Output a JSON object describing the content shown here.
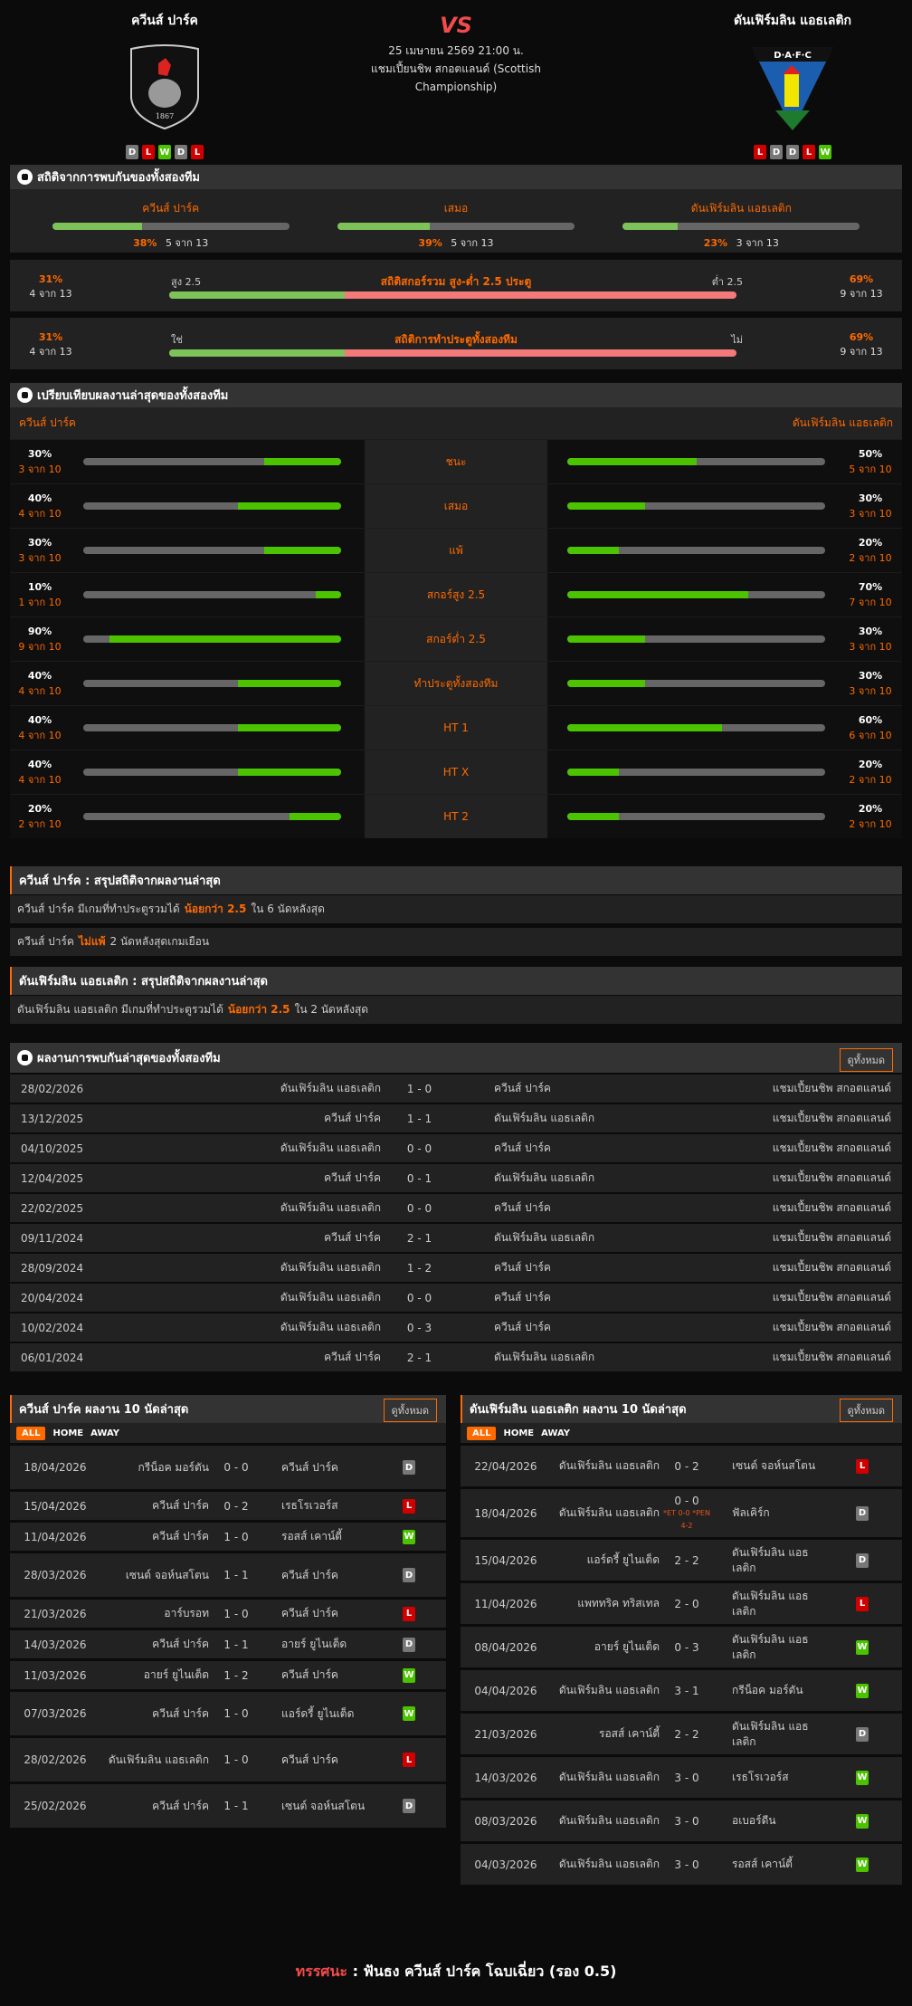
{
  "colors": {
    "accent": "#ff6a00",
    "win": "#4cc300",
    "loss": "#d00000",
    "draw": "#777777",
    "bar_green": "#7dc35a",
    "bar_red": "#f47a7a"
  },
  "match": {
    "home": {
      "name": "ควีนส์ ปาร์ค",
      "logo_text": "QUEEN'S PARK F.C. 1867",
      "form": [
        "D",
        "L",
        "W",
        "D",
        "L"
      ]
    },
    "away": {
      "name": "ดันเฟิร์มลิน แอธเลติก",
      "logo_text": "D·A·F·C",
      "form": [
        "L",
        "D",
        "D",
        "L",
        "W"
      ]
    },
    "vs": "VS",
    "datetime": "25 เมษายน 2569 21:00 น.",
    "league": "แชมเปี้ยนชิพ สกอตแลนด์ (Scottish Championship)"
  },
  "h2h_stats": {
    "title": "สถิติจากการพบกันของทั้งสองทีม",
    "items": [
      {
        "label": "ควีนส์ ปาร์ค",
        "pct": "38%",
        "count": "5 จาก 13",
        "value": 38
      },
      {
        "label": "เสมอ",
        "pct": "39%",
        "count": "5 จาก 13",
        "value": 39
      },
      {
        "label": "ดันเฟิร์มลิน แอธเลติก",
        "pct": "23%",
        "count": "3 จาก 13",
        "value": 23
      }
    ],
    "over_under": {
      "title": "สถิติสกอร์รวม สูง-ต่ำ 2.5 ประตู",
      "left_label": "สูง 2.5",
      "right_label": "ต่ำ 2.5",
      "left_pct": "31%",
      "left_count": "4 จาก 13",
      "right_pct": "69%",
      "right_count": "9 จาก 13",
      "value": 31
    },
    "btts": {
      "title": "สถิติการทำประตูทั้งสองทีม",
      "left_label": "ใช่",
      "right_label": "ไม่",
      "left_pct": "31%",
      "left_count": "4 จาก 13",
      "right_pct": "69%",
      "right_count": "9 จาก 13",
      "value": 31
    }
  },
  "compare": {
    "title": "เปรียบเทียบผลงานล่าสุดของทั้งสองทีม",
    "home_name": "ควีนส์ ปาร์ค",
    "away_name": "ดันเฟิร์มลิน แอธเลติก",
    "rows": [
      {
        "label": "ชนะ",
        "h_pct": "30%",
        "h_count": "3 จาก 10",
        "h": 30,
        "a_pct": "50%",
        "a_count": "5 จาก 10",
        "a": 50
      },
      {
        "label": "เสมอ",
        "h_pct": "40%",
        "h_count": "4 จาก 10",
        "h": 40,
        "a_pct": "30%",
        "a_count": "3 จาก 10",
        "a": 30
      },
      {
        "label": "แพ้",
        "h_pct": "30%",
        "h_count": "3 จาก 10",
        "h": 30,
        "a_pct": "20%",
        "a_count": "2 จาก 10",
        "a": 20
      },
      {
        "label": "สกอร์สูง 2.5",
        "h_pct": "10%",
        "h_count": "1 จาก 10",
        "h": 10,
        "a_pct": "70%",
        "a_count": "7 จาก 10",
        "a": 70
      },
      {
        "label": "สกอร์ต่ำ 2.5",
        "h_pct": "90%",
        "h_count": "9 จาก 10",
        "h": 90,
        "a_pct": "30%",
        "a_count": "3 จาก 10",
        "a": 30
      },
      {
        "label": "ทำประตูทั้งสองทีม",
        "h_pct": "40%",
        "h_count": "4 จาก 10",
        "h": 40,
        "a_pct": "30%",
        "a_count": "3 จาก 10",
        "a": 30
      },
      {
        "label": "HT 1",
        "h_pct": "40%",
        "h_count": "4 จาก 10",
        "h": 40,
        "a_pct": "60%",
        "a_count": "6 จาก 10",
        "a": 60
      },
      {
        "label": "HT X",
        "h_pct": "40%",
        "h_count": "4 จาก 10",
        "h": 40,
        "a_pct": "20%",
        "a_count": "2 จาก 10",
        "a": 20
      },
      {
        "label": "HT 2",
        "h_pct": "20%",
        "h_count": "2 จาก 10",
        "h": 20,
        "a_pct": "20%",
        "a_count": "2 จาก 10",
        "a": 20
      }
    ]
  },
  "summary_home": {
    "title": "ควีนส์ ปาร์ค : สรุปสถิติจากผลงานล่าสุด",
    "rows": [
      {
        "a": "ควีนส์ ปาร์ค  มีเกมที่ทำประตูรวมได้",
        "hl": "น้อยกว่า  2.5",
        "b": "ใน 6 นัดหลังสุด"
      },
      {
        "a": "ควีนส์ ปาร์ค",
        "hl": "ไม่แพ้",
        "b": "2  นัดหลังสุดเกมเยือน"
      }
    ]
  },
  "summary_away": {
    "title": "ดันเฟิร์มลิน แอธเลติก : สรุปสถิติจากผลงานล่าสุด",
    "rows": [
      {
        "a": "ดันเฟิร์มลิน แอธเลติก  มีเกมที่ทำประตูรวมได้",
        "hl": "น้อยกว่า  2.5",
        "b": "ใน 2 นัดหลังสุด"
      }
    ]
  },
  "h2h": {
    "title": "ผลงานการพบกันล่าสุดของทั้งสองทีม",
    "view_all": "ดูทั้งหมด",
    "rows": [
      {
        "date": "28/02/2026",
        "home": "ดันเฟิร์มลิน แอธเลติก",
        "score": "1 - 0",
        "away": "ควีนส์ ปาร์ค",
        "league": "แชมเปี้ยนชิพ สกอตแลนด์"
      },
      {
        "date": "13/12/2025",
        "home": "ควีนส์ ปาร์ค",
        "score": "1 - 1",
        "away": "ดันเฟิร์มลิน แอธเลติก",
        "league": "แชมเปี้ยนชิพ สกอตแลนด์"
      },
      {
        "date": "04/10/2025",
        "home": "ดันเฟิร์มลิน แอธเลติก",
        "score": "0 - 0",
        "away": "ควีนส์ ปาร์ค",
        "league": "แชมเปี้ยนชิพ สกอตแลนด์"
      },
      {
        "date": "12/04/2025",
        "home": "ควีนส์ ปาร์ค",
        "score": "0 - 1",
        "away": "ดันเฟิร์มลิน แอธเลติก",
        "league": "แชมเปี้ยนชิพ สกอตแลนด์"
      },
      {
        "date": "22/02/2025",
        "home": "ดันเฟิร์มลิน แอธเลติก",
        "score": "0 - 0",
        "away": "ควีนส์ ปาร์ค",
        "league": "แชมเปี้ยนชิพ สกอตแลนด์"
      },
      {
        "date": "09/11/2024",
        "home": "ควีนส์ ปาร์ค",
        "score": "2 - 1",
        "away": "ดันเฟิร์มลิน แอธเลติก",
        "league": "แชมเปี้ยนชิพ สกอตแลนด์"
      },
      {
        "date": "28/09/2024",
        "home": "ดันเฟิร์มลิน แอธเลติก",
        "score": "1 - 2",
        "away": "ควีนส์ ปาร์ค",
        "league": "แชมเปี้ยนชิพ สกอตแลนด์"
      },
      {
        "date": "20/04/2024",
        "home": "ดันเฟิร์มลิน แอธเลติก",
        "score": "0 - 0",
        "away": "ควีนส์ ปาร์ค",
        "league": "แชมเปี้ยนชิพ สกอตแลนด์"
      },
      {
        "date": "10/02/2024",
        "home": "ดันเฟิร์มลิน แอธเลติก",
        "score": "0 - 3",
        "away": "ควีนส์ ปาร์ค",
        "league": "แชมเปี้ยนชิพ สกอตแลนด์"
      },
      {
        "date": "06/01/2024",
        "home": "ควีนส์ ปาร์ค",
        "score": "2 - 1",
        "away": "ดันเฟิร์มลิน แอธเลติก",
        "league": "แชมเปี้ยนชิพ สกอตแลนด์"
      }
    ]
  },
  "last10_home": {
    "title": "ควีนส์ ปาร์ค ผลงาน 10 นัดล่าสุด",
    "view_all": "ดูทั้งหมด",
    "filters": [
      "ALL",
      "HOME",
      "AWAY"
    ],
    "rows": [
      {
        "date": "18/04/2026",
        "home": "กรีน็อค มอร์ตัน",
        "score": "0 - 0",
        "away": "ควีนส์ ปาร์ค",
        "result": "D"
      },
      {
        "date": "15/04/2026",
        "home": "ควีนส์ ปาร์ค",
        "score": "0 - 2",
        "away": "เรธโรเวอร์ส",
        "result": "L"
      },
      {
        "date": "11/04/2026",
        "home": "ควีนส์ ปาร์ค",
        "score": "1 - 0",
        "away": "รอสส์ เคาน์ตี้",
        "result": "W"
      },
      {
        "date": "28/03/2026",
        "home": "เซนต์ จอห์นสโตน",
        "score": "1 - 1",
        "away": "ควีนส์ ปาร์ค",
        "result": "D"
      },
      {
        "date": "21/03/2026",
        "home": "อาร์บรอท",
        "score": "1 - 0",
        "away": "ควีนส์ ปาร์ค",
        "result": "L"
      },
      {
        "date": "14/03/2026",
        "home": "ควีนส์ ปาร์ค",
        "score": "1 - 1",
        "away": "อายร์ ยูไนเต็ด",
        "result": "D"
      },
      {
        "date": "11/03/2026",
        "home": "อายร์ ยูไนเต็ด",
        "score": "1 - 2",
        "away": "ควีนส์ ปาร์ค",
        "result": "W"
      },
      {
        "date": "07/03/2026",
        "home": "ควีนส์ ปาร์ค",
        "score": "1 - 0",
        "away": "แอร์ดรี้ ยูไนเต็ด",
        "result": "W"
      },
      {
        "date": "28/02/2026",
        "home": "ดันเฟิร์มลิน แอธเลติก",
        "score": "1 - 0",
        "away": "ควีนส์ ปาร์ค",
        "result": "L"
      },
      {
        "date": "25/02/2026",
        "home": "ควีนส์ ปาร์ค",
        "score": "1 - 1",
        "away": "เซนต์ จอห์นสโตน",
        "result": "D"
      }
    ]
  },
  "last10_away": {
    "title": "ดันเฟิร์มลิน แอธเลติก ผลงาน 10 นัดล่าสุด",
    "view_all": "ดูทั้งหมด",
    "filters": [
      "ALL",
      "HOME",
      "AWAY"
    ],
    "rows": [
      {
        "date": "22/04/2026",
        "home": "ดันเฟิร์มลิน แอธเลติก",
        "score": "0 - 2",
        "away": "เซนต์ จอห์นสโตน",
        "result": "L"
      },
      {
        "date": "18/04/2026",
        "home": "ดันเฟิร์มลิน แอธเลติก",
        "score": "0 - 0",
        "note": "*ET 0-0 *PEN 4-2",
        "away": "ฟัลเคิร์ก",
        "result": "D"
      },
      {
        "date": "15/04/2026",
        "home": "แอร์ดรี้ ยูไนเต็ด",
        "score": "2 - 2",
        "away": "ดันเฟิร์มลิน แอธเลติก",
        "result": "D"
      },
      {
        "date": "11/04/2026",
        "home": "แพททริค ทริสเทล",
        "score": "2 - 0",
        "away": "ดันเฟิร์มลิน แอธเลติก",
        "result": "L"
      },
      {
        "date": "08/04/2026",
        "home": "อายร์ ยูไนเต็ด",
        "score": "0 - 3",
        "away": "ดันเฟิร์มลิน แอธเลติก",
        "result": "W"
      },
      {
        "date": "04/04/2026",
        "home": "ดันเฟิร์มลิน แอธเลติก",
        "score": "3 - 1",
        "away": "กรีน็อค มอร์ตัน",
        "result": "W"
      },
      {
        "date": "21/03/2026",
        "home": "รอสส์ เคาน์ตี้",
        "score": "2 - 2",
        "away": "ดันเฟิร์มลิน แอธเลติก",
        "result": "D"
      },
      {
        "date": "14/03/2026",
        "home": "ดันเฟิร์มลิน แอธเลติก",
        "score": "3 - 0",
        "away": "เรธโรเวอร์ส",
        "result": "W"
      },
      {
        "date": "08/03/2026",
        "home": "ดันเฟิร์มลิน แอธเลติก",
        "score": "3 - 0",
        "away": "อเบอร์ดีน",
        "result": "W"
      },
      {
        "date": "04/03/2026",
        "home": "ดันเฟิร์มลิน แอธเลติก",
        "score": "3 - 0",
        "away": "รอสส์ เคาน์ตี้",
        "result": "W"
      }
    ]
  },
  "verdict": {
    "label": "ทรรศนะ",
    "sep": ":",
    "text": "ฟันธง ควีนส์ ปาร์ค โฉบเฉี่ยว (รอง 0.5)"
  }
}
